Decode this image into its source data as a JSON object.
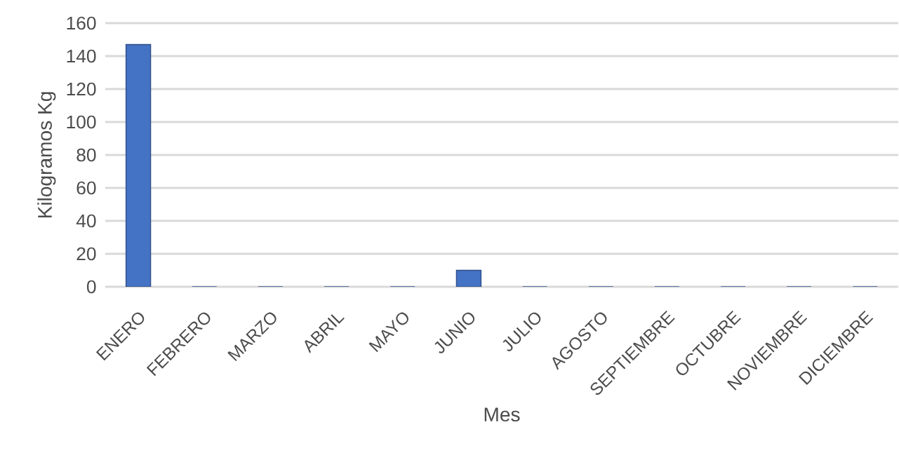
{
  "chart_data": {
    "type": "bar",
    "xlabel": "Mes",
    "ylabel": "Kilogramos Kg",
    "categories": [
      "ENERO",
      "FEBRERO",
      "MARZO",
      "ABRIL",
      "MAYO",
      "JUNIO",
      "JULIO",
      "AGOSTO",
      "SEPTIEMBRE",
      "OCTUBRE",
      "NOVIEMBRE",
      "DICIEMBRE"
    ],
    "values": [
      147,
      0,
      0,
      0,
      0,
      10,
      0,
      0,
      0,
      0,
      0,
      0
    ],
    "color": "#4472c4",
    "ylim": [
      0,
      160
    ],
    "yticks": [
      0,
      20,
      40,
      60,
      80,
      100,
      120,
      140,
      160
    ],
    "grid": "y"
  }
}
